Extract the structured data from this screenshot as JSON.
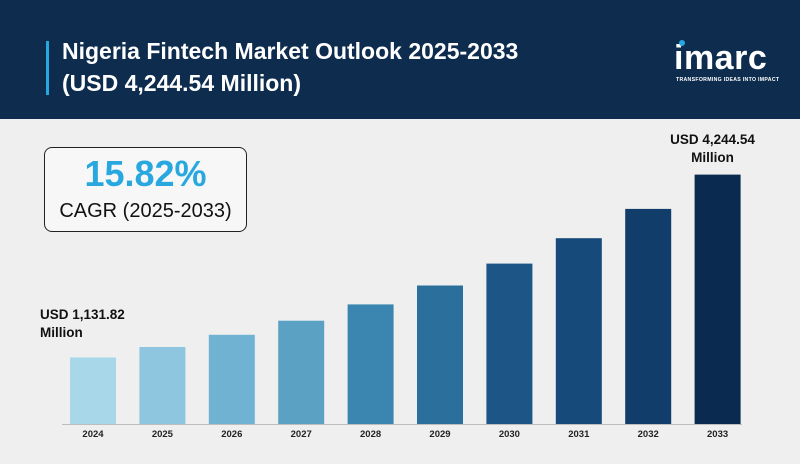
{
  "header": {
    "title_line1": "Nigeria Fintech Market Outlook 2025-2033",
    "title_line2": "(USD 4,244.54 Million)"
  },
  "logo": {
    "word": "imarc",
    "tagline": "TRANSFORMING IDEAS INTO IMPACT"
  },
  "cagr": {
    "value": "15.82%",
    "label": "CAGR (2025-2033)"
  },
  "annotations": {
    "start_line1": "USD 1,131.82",
    "start_line2": "Million",
    "end_line1": "USD 4,244.54",
    "end_line2": "Million"
  },
  "colors": {
    "header_bg": "#0e2c4e",
    "accent": "#29a8e0",
    "background": "#efefef"
  },
  "chart_data": {
    "type": "bar",
    "categories": [
      "2024",
      "2025",
      "2026",
      "2027",
      "2028",
      "2029",
      "2030",
      "2031",
      "2032",
      "2033"
    ],
    "values": [
      1131.82,
      1311,
      1518,
      1758,
      2036,
      2357,
      2730,
      3162,
      3662,
      4244.54
    ],
    "bar_colors": [
      "#a9d7ea",
      "#8ec6e0",
      "#6fb2d2",
      "#5aa1c4",
      "#3b86b0",
      "#2b6f9d",
      "#1d5587",
      "#164a7a",
      "#113d6a",
      "#0b2a4f"
    ],
    "title": "Nigeria Fintech Market Outlook 2025-2033",
    "xlabel": "",
    "ylabel": "",
    "y_axis_shown": false,
    "grid": false
  }
}
